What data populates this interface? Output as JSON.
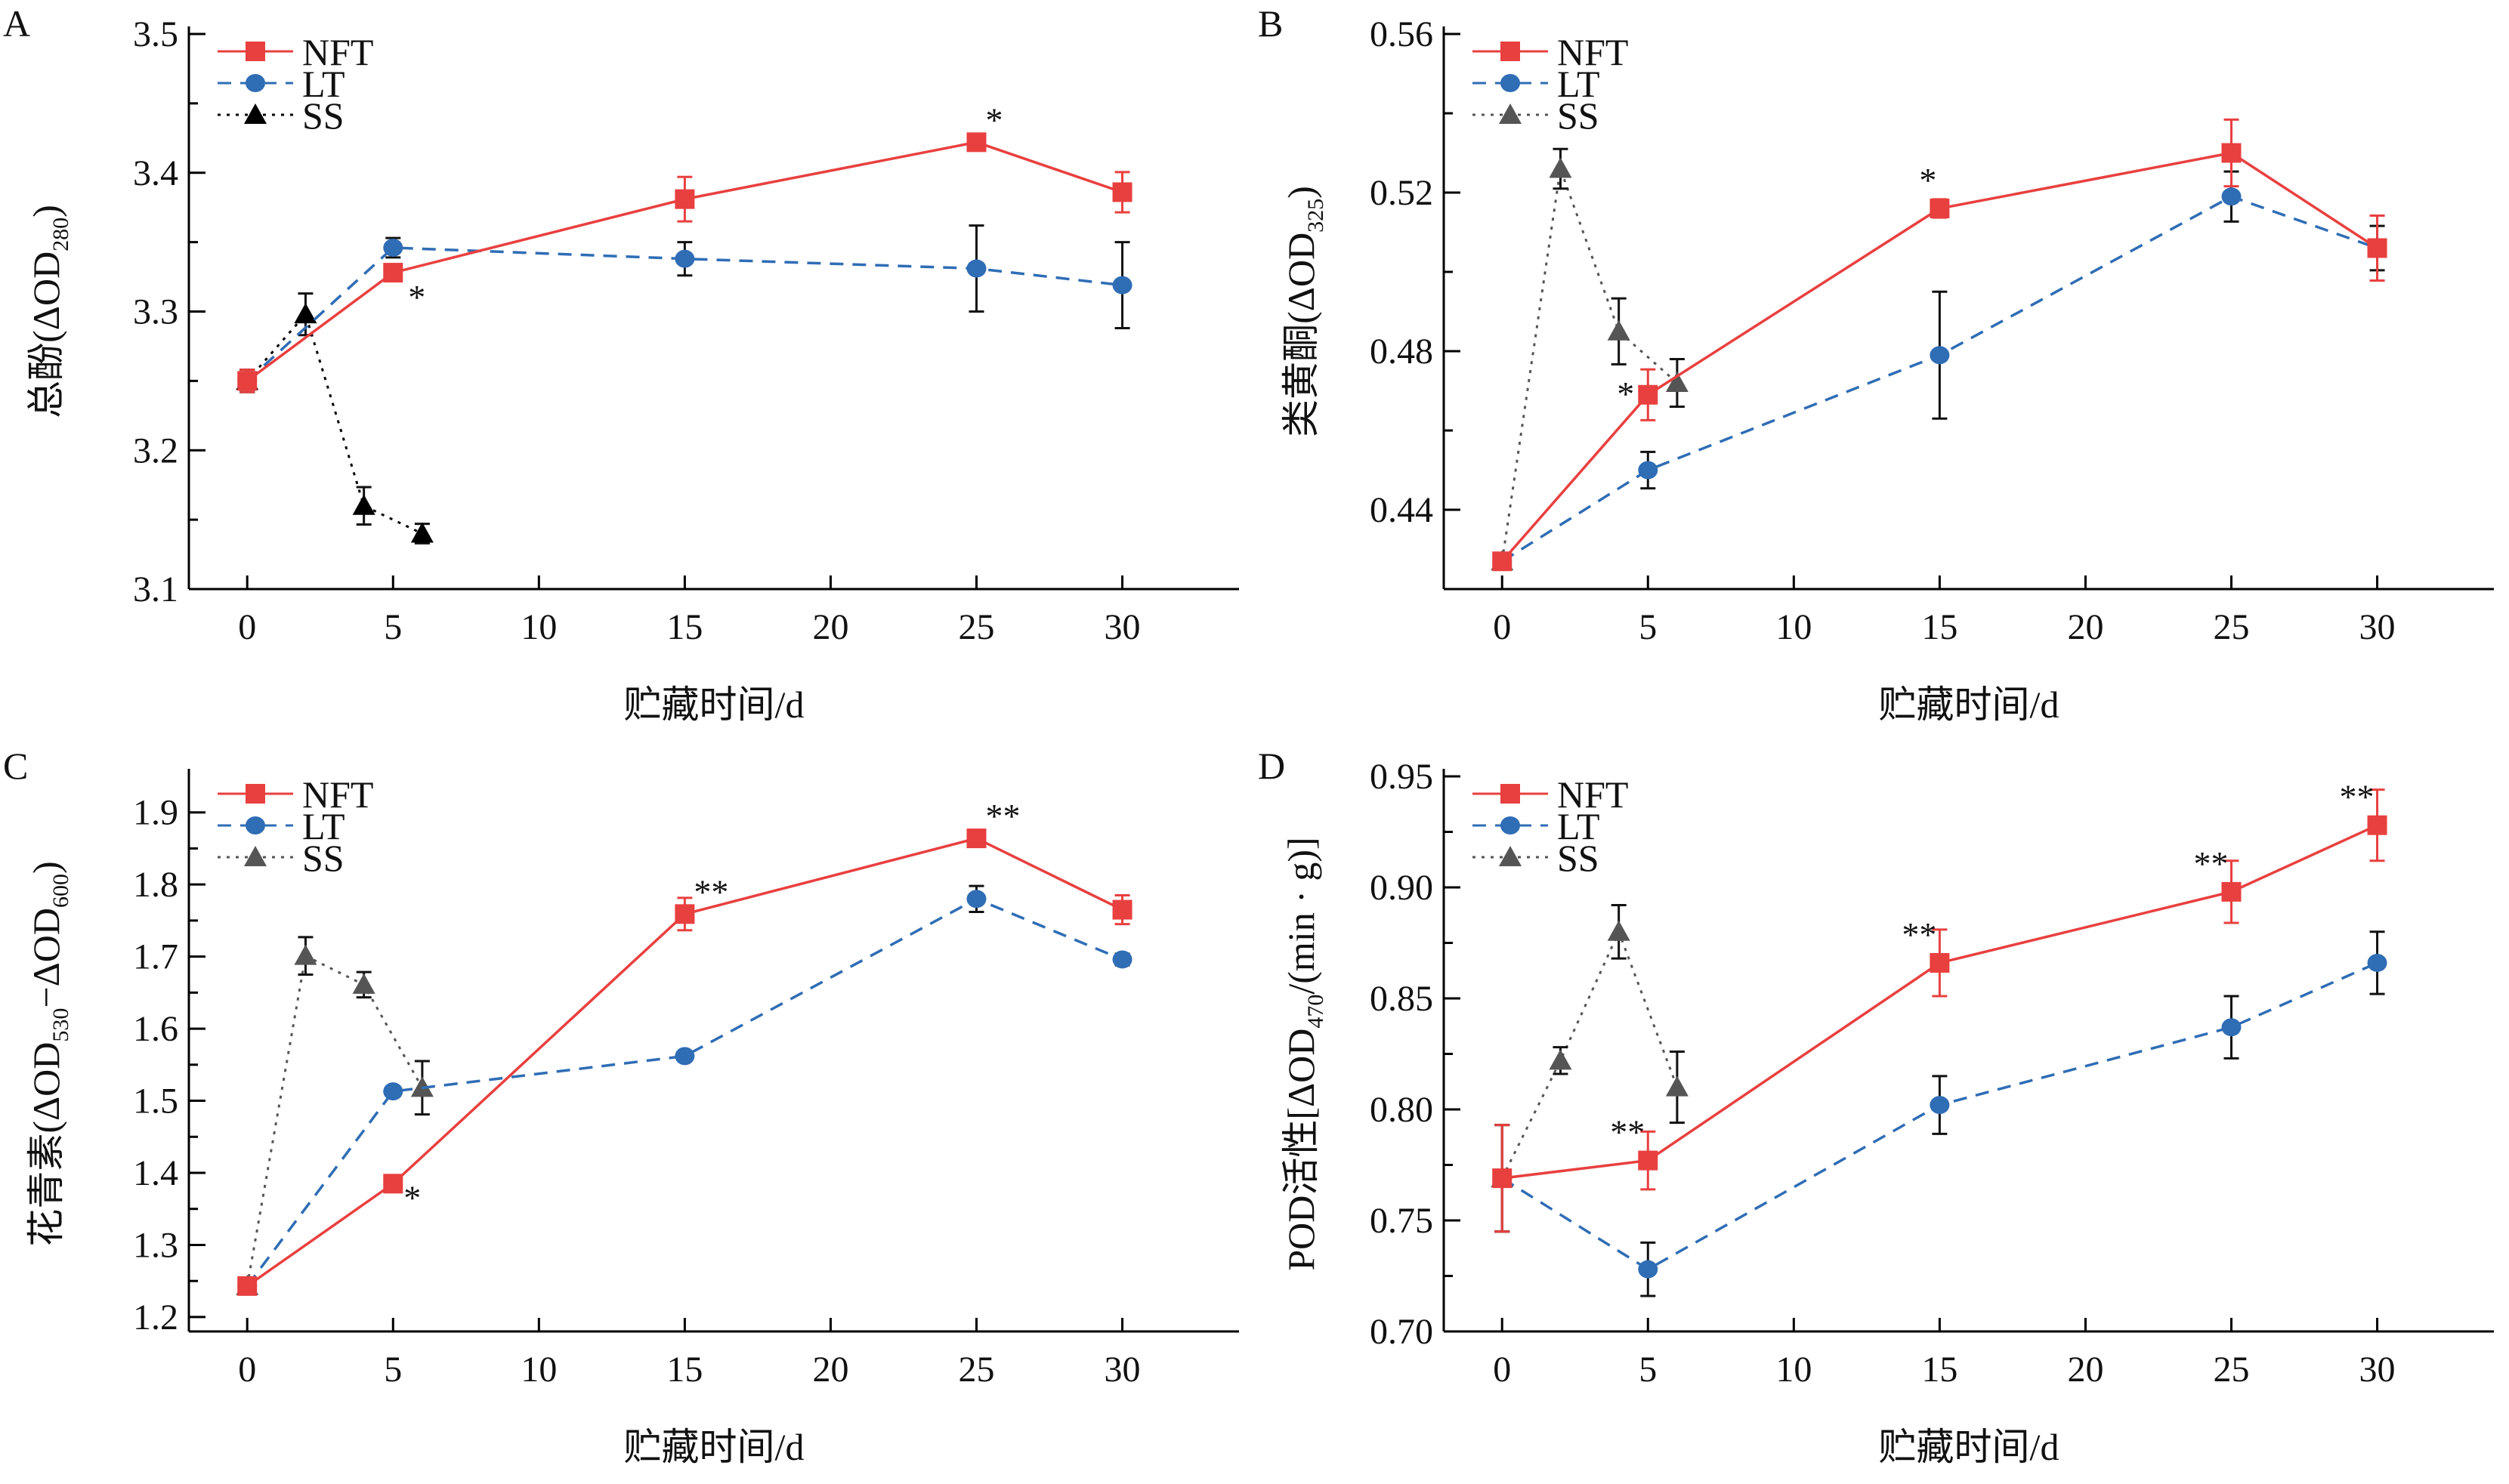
{
  "figure": {
    "panels": [
      "A",
      "B",
      "C",
      "D"
    ]
  },
  "chart_data": [
    {
      "type": "line",
      "panel_label": "A",
      "title": "",
      "xlabel": "贮藏时间/d",
      "ylabel": "总酚(ΔOD₂₈₀)",
      "ylabel_parts": {
        "main": "总酚(ΔOD",
        "sub": "280",
        "tail": ")"
      },
      "xlim": [
        -2,
        34
      ],
      "ylim": [
        3.1,
        3.5
      ],
      "xticks": [
        0,
        5,
        10,
        15,
        20,
        25,
        30
      ],
      "yticks": [
        3.1,
        3.2,
        3.3,
        3.4,
        3.5
      ],
      "yticks_minor": [
        3.15,
        3.25,
        3.35,
        3.45
      ],
      "grid": false,
      "legend_position": "top-left",
      "ss_color": "#000000",
      "series": [
        {
          "name": "NFT",
          "color": "#E8403F",
          "marker": "square",
          "line": "solid",
          "err_color": "#E8403F",
          "x": [
            0,
            5,
            15,
            25,
            30
          ],
          "y": [
            3.25,
            3.328,
            3.381,
            3.422,
            3.386
          ],
          "err": [
            0.008,
            0.002,
            0.016,
            0.001,
            0.0145
          ],
          "sig": [
            "",
            "*",
            "",
            "*",
            ""
          ],
          "sig_pos": [
            "",
            "below-right",
            "",
            "above-right",
            ""
          ]
        },
        {
          "name": "LT",
          "color": "#2F6DB5",
          "marker": "circle",
          "line": "dashed",
          "err_color": "#111111",
          "x": [
            0,
            5,
            15,
            25,
            30
          ],
          "y": [
            3.25,
            3.346,
            3.338,
            3.331,
            3.319
          ],
          "err": [
            0.008,
            0.007,
            0.012,
            0.031,
            0.031
          ]
        },
        {
          "name": "SS",
          "color": "#000000",
          "marker": "triangle",
          "line": "dotted",
          "err_color": "#111111",
          "x": [
            0,
            2,
            4,
            6
          ],
          "y": [
            3.25,
            3.298,
            3.16,
            3.14
          ],
          "err": [
            0.008,
            0.015,
            0.0135,
            0.007
          ]
        }
      ]
    },
    {
      "type": "line",
      "panel_label": "B",
      "title": "",
      "xlabel": "贮藏时间/d",
      "ylabel": "类黄酮(ΔOD₃₂₅)",
      "ylabel_parts": {
        "main": "类黄酮(ΔOD",
        "sub": "325",
        "tail": ")"
      },
      "xlim": [
        -2,
        34
      ],
      "ylim": [
        0.42,
        0.56
      ],
      "xticks": [
        0,
        5,
        10,
        15,
        20,
        25,
        30
      ],
      "yticks": [
        0.44,
        0.48,
        0.52,
        0.56
      ],
      "yticks_minor": [
        0.46,
        0.5,
        0.54
      ],
      "ytick_decimals": 2,
      "grid": false,
      "legend_position": "top-left",
      "ss_color": "#555555",
      "series": [
        {
          "name": "NFT",
          "color": "#E8403F",
          "marker": "square",
          "line": "solid",
          "err_color": "#E8403F",
          "x": [
            0,
            5,
            15,
            25,
            30
          ],
          "y": [
            0.427,
            0.469,
            0.516,
            0.53,
            0.506
          ],
          "err": [
            0.0015,
            0.0064,
            0.0023,
            0.0084,
            0.0082
          ],
          "sig": [
            "",
            "*",
            "*",
            "",
            ""
          ],
          "sig_pos": [
            "",
            "left",
            "above-left",
            "",
            ""
          ]
        },
        {
          "name": "LT",
          "color": "#2F6DB5",
          "marker": "circle",
          "line": "dashed",
          "err_color": "#111111",
          "x": [
            0,
            5,
            15,
            25,
            30
          ],
          "y": [
            0.427,
            0.45,
            0.479,
            0.519,
            0.506
          ],
          "err": [
            0.0015,
            0.0046,
            0.016,
            0.0063,
            0.0056
          ]
        },
        {
          "name": "SS",
          "color": "#555555",
          "marker": "triangle",
          "line": "dotted",
          "err_color": "#111111",
          "x": [
            0,
            2,
            4,
            6
          ],
          "y": [
            0.427,
            0.526,
            0.485,
            0.472
          ],
          "err": [
            0.0015,
            0.005,
            0.0083,
            0.006
          ]
        }
      ]
    },
    {
      "type": "line",
      "panel_label": "C",
      "title": "",
      "xlabel": "贮藏时间/d",
      "ylabel": "花青素(ΔOD₅₃₀−ΔOD₆₀₀)",
      "ylabel_parts": {
        "main": "花青素(ΔOD",
        "sub": "530",
        "mid": "−ΔOD",
        "sub2": "600",
        "tail": ")"
      },
      "xlim": [
        -2,
        34
      ],
      "ylim": [
        1.18,
        1.95
      ],
      "xticks": [
        0,
        5,
        10,
        15,
        20,
        25,
        30
      ],
      "yticks": [
        1.2,
        1.3,
        1.4,
        1.5,
        1.6,
        1.7,
        1.8,
        1.9
      ],
      "yticks_minor": [
        1.25,
        1.35,
        1.45,
        1.55,
        1.65,
        1.75,
        1.85
      ],
      "ytick_decimals": 1,
      "grid": false,
      "legend_position": "top-left",
      "ss_color": "#555555",
      "series": [
        {
          "name": "NFT",
          "color": "#E8403F",
          "marker": "square",
          "line": "solid",
          "err_color": "#E8403F",
          "x": [
            0,
            5,
            15,
            25,
            30
          ],
          "y": [
            1.243,
            1.385,
            1.759,
            1.864,
            1.765
          ],
          "err": [
            0.008,
            0.003,
            0.0225,
            0.0095,
            0.02
          ],
          "sig": [
            "",
            "*",
            "**",
            "**",
            ""
          ],
          "sig_pos": [
            "",
            "right",
            "above-right",
            "above-right",
            ""
          ]
        },
        {
          "name": "LT",
          "color": "#2F6DB5",
          "marker": "circle",
          "line": "dashed",
          "err_color": "#111111",
          "x": [
            0,
            5,
            15,
            25,
            30
          ],
          "y": [
            1.243,
            1.513,
            1.562,
            1.78,
            1.696
          ],
          "err": [
            0.008,
            0.004,
            0.004,
            0.018,
            0.008
          ]
        },
        {
          "name": "SS",
          "color": "#555555",
          "marker": "triangle",
          "line": "dotted",
          "err_color": "#111111",
          "x": [
            0,
            2,
            4,
            6
          ],
          "y": [
            1.243,
            1.701,
            1.661,
            1.518
          ],
          "err": [
            0.008,
            0.026,
            0.0175,
            0.037
          ]
        }
      ]
    },
    {
      "type": "line",
      "panel_label": "D",
      "title": "",
      "xlabel": "贮藏时间/d",
      "ylabel": "POD活性[ΔOD₄₇₀/(min·g)]",
      "ylabel_parts": {
        "main": "POD活性[ΔOD",
        "sub": "470",
        "tail": "/(min · g)]"
      },
      "xlim": [
        -2,
        34
      ],
      "ylim": [
        0.7,
        0.95
      ],
      "xticks": [
        0,
        5,
        10,
        15,
        20,
        25,
        30
      ],
      "yticks": [
        0.7,
        0.75,
        0.8,
        0.85,
        0.9,
        0.95
      ],
      "yticks_minor": [
        0.725,
        0.775,
        0.825,
        0.875,
        0.925
      ],
      "ytick_decimals": 2,
      "grid": false,
      "legend_position": "top-left",
      "ss_color": "#555555",
      "series": [
        {
          "name": "NFT",
          "color": "#E8403F",
          "marker": "square",
          "line": "solid",
          "err_color": "#E8403F",
          "x": [
            0,
            5,
            15,
            25,
            30
          ],
          "y": [
            0.769,
            0.777,
            0.866,
            0.898,
            0.928
          ],
          "err": [
            0.024,
            0.013,
            0.015,
            0.014,
            0.016
          ],
          "sig": [
            "",
            "**",
            "**",
            "**",
            "**"
          ],
          "sig_pos": [
            "",
            "above-left",
            "above-left",
            "above-left",
            "above-left"
          ]
        },
        {
          "name": "LT",
          "color": "#2F6DB5",
          "marker": "circle",
          "line": "dashed",
          "err_color": "#111111",
          "x": [
            0,
            5,
            15,
            25,
            30
          ],
          "y": [
            0.769,
            0.728,
            0.802,
            0.837,
            0.866
          ],
          "err": [
            0.024,
            0.012,
            0.013,
            0.014,
            0.014
          ]
        },
        {
          "name": "SS",
          "color": "#555555",
          "marker": "triangle",
          "line": "dotted",
          "err_color": "#111111",
          "x": [
            0,
            2,
            4,
            6
          ],
          "y": [
            0.769,
            0.822,
            0.88,
            0.81
          ],
          "err": [
            0.024,
            0.006,
            0.012,
            0.016
          ]
        }
      ]
    }
  ]
}
